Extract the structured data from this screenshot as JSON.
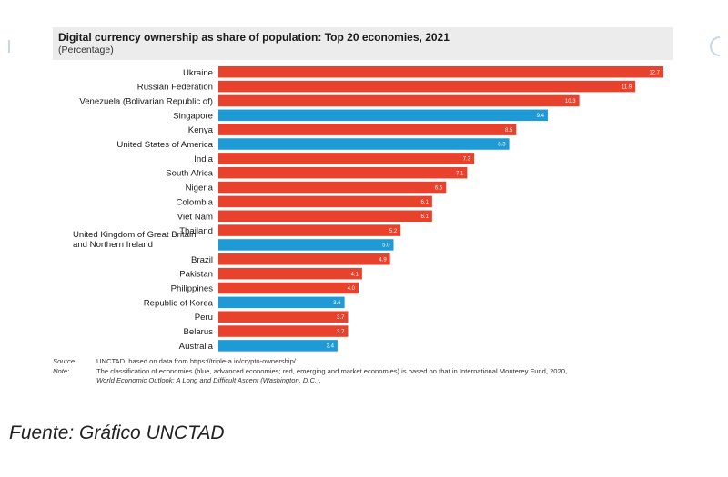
{
  "chart_data": {
    "type": "bar",
    "orientation": "horizontal",
    "title": "Digital currency ownership as share of population: Top 20 economies, 2021",
    "subtitle": "(Percentage)",
    "xlim": [
      0,
      12.7
    ],
    "grid": false,
    "categories": [
      [
        "Ukraine"
      ],
      [
        "Russian Federation"
      ],
      [
        "Venezuela (Bolivarian Republic of)"
      ],
      [
        "Singapore"
      ],
      [
        "Kenya"
      ],
      [
        "United States of America"
      ],
      [
        "India"
      ],
      [
        "South Africa"
      ],
      [
        "Nigeria"
      ],
      [
        "Colombia"
      ],
      [
        "Viet Nam"
      ],
      [
        "Thailand"
      ],
      [
        "United Kingdom of Great Britain",
        "and Northern Ireland"
      ],
      [
        "Brazil"
      ],
      [
        "Pakistan"
      ],
      [
        "Philippines"
      ],
      [
        "Republic of Korea"
      ],
      [
        "Peru"
      ],
      [
        "Belarus"
      ],
      [
        "Australia"
      ]
    ],
    "values": [
      12.7,
      11.9,
      10.3,
      9.4,
      8.5,
      8.3,
      7.3,
      7.1,
      6.5,
      6.1,
      6.1,
      5.2,
      5.0,
      4.9,
      4.1,
      4.0,
      3.6,
      3.7,
      3.7,
      3.4
    ],
    "value_labels": [
      "12.7",
      "11.9",
      "10.3",
      "9.4",
      "8.5",
      "8.3",
      "7.3",
      "7.1",
      "6.5",
      "6.1",
      "6.1",
      "5.2",
      "5.0",
      "4.9",
      "4.1",
      "4.0",
      "3.6",
      "3.7",
      "3.7",
      "3.4"
    ],
    "groups": [
      "emerging",
      "emerging",
      "emerging",
      "advanced",
      "emerging",
      "advanced",
      "emerging",
      "emerging",
      "emerging",
      "emerging",
      "emerging",
      "emerging",
      "advanced",
      "emerging",
      "emerging",
      "emerging",
      "advanced",
      "emerging",
      "emerging",
      "advanced"
    ],
    "group_colors": {
      "emerging": "#e8412c",
      "advanced": "#1e9ad6"
    }
  },
  "notes": {
    "source_key": "Source:",
    "source_text": "UNCTAD, based on data from https://triple-a.io/crypto-ownership/.",
    "note_key": "Note:",
    "note_text_1": "The classification of economies (blue, advanced economies; red, emerging and market economies) is based on that in International Monterey Fund, 2020,",
    "note_text_2": "World Economic Outlook: A Long and Difficult Ascent (Washington, D.C.)."
  },
  "caption": "Fuente: Gráfico UNCTAD"
}
